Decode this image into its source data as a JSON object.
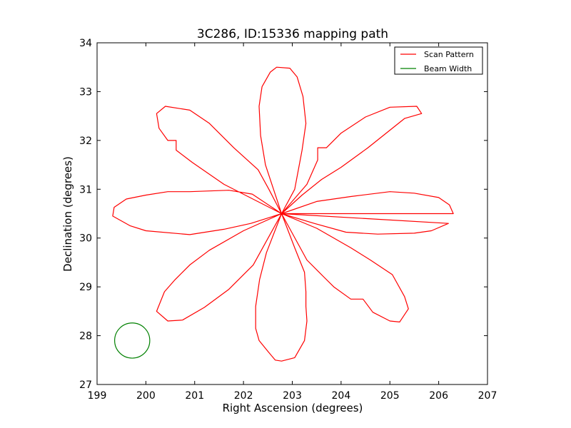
{
  "chart_data": {
    "type": "line",
    "title": "3C286, ID:15336 mapping path",
    "xlabel": "Right Ascension (degrees)",
    "ylabel": "Declination (degrees)",
    "xlim": [
      199,
      207
    ],
    "ylim": [
      27,
      34
    ],
    "xticks": [
      199,
      200,
      201,
      202,
      203,
      204,
      205,
      206,
      207
    ],
    "yticks": [
      27,
      28,
      29,
      30,
      31,
      32,
      33,
      34
    ],
    "grid": false,
    "legend_position": "top-right",
    "center": [
      202.78,
      30.5
    ],
    "series": [
      {
        "name": "Scan Pattern",
        "color": "#ff0000",
        "points": [
          [
            202.78,
            30.5
          ],
          [
            202.52,
            31.0
          ],
          [
            202.3,
            31.4
          ],
          [
            201.8,
            31.85
          ],
          [
            201.3,
            32.35
          ],
          [
            200.9,
            32.62
          ],
          [
            200.4,
            32.7
          ],
          [
            200.22,
            32.55
          ],
          [
            200.27,
            32.25
          ],
          [
            200.45,
            32.0
          ],
          [
            200.62,
            32.0
          ],
          [
            200.62,
            31.8
          ],
          [
            200.95,
            31.55
          ],
          [
            201.6,
            31.1
          ],
          [
            202.78,
            30.5
          ],
          [
            202.18,
            30.9
          ],
          [
            201.7,
            30.98
          ],
          [
            200.9,
            30.95
          ],
          [
            200.45,
            30.95
          ],
          [
            200.0,
            30.88
          ],
          [
            199.6,
            30.8
          ],
          [
            199.35,
            30.63
          ],
          [
            199.32,
            30.45
          ],
          [
            199.68,
            30.25
          ],
          [
            200.0,
            30.15
          ],
          [
            200.9,
            30.07
          ],
          [
            201.6,
            30.18
          ],
          [
            202.15,
            30.3
          ],
          [
            202.78,
            30.5
          ],
          [
            202.0,
            30.15
          ],
          [
            201.3,
            29.75
          ],
          [
            200.9,
            29.45
          ],
          [
            200.6,
            29.15
          ],
          [
            200.38,
            28.9
          ],
          [
            200.22,
            28.5
          ],
          [
            200.45,
            28.3
          ],
          [
            200.75,
            28.32
          ],
          [
            201.2,
            28.58
          ],
          [
            201.7,
            28.95
          ],
          [
            202.2,
            29.45
          ],
          [
            202.78,
            30.5
          ],
          [
            202.47,
            29.7
          ],
          [
            202.33,
            29.15
          ],
          [
            202.25,
            28.6
          ],
          [
            202.25,
            28.15
          ],
          [
            202.32,
            27.9
          ],
          [
            202.5,
            27.68
          ],
          [
            202.65,
            27.5
          ],
          [
            202.78,
            27.48
          ],
          [
            203.05,
            27.55
          ],
          [
            203.25,
            27.9
          ],
          [
            203.3,
            28.3
          ],
          [
            203.28,
            28.6
          ],
          [
            203.28,
            28.9
          ],
          [
            203.25,
            29.3
          ],
          [
            203.05,
            29.8
          ],
          [
            202.78,
            30.5
          ],
          [
            203.3,
            29.55
          ],
          [
            203.65,
            29.2
          ],
          [
            203.85,
            29.0
          ],
          [
            204.2,
            28.75
          ],
          [
            204.45,
            28.75
          ],
          [
            204.65,
            28.48
          ],
          [
            205.0,
            28.3
          ],
          [
            205.2,
            28.28
          ],
          [
            205.38,
            28.55
          ],
          [
            205.3,
            28.8
          ],
          [
            205.05,
            29.25
          ],
          [
            204.6,
            29.55
          ],
          [
            204.2,
            29.8
          ],
          [
            203.5,
            30.2
          ],
          [
            202.78,
            30.5
          ],
          [
            203.45,
            30.3
          ],
          [
            204.1,
            30.12
          ],
          [
            204.75,
            30.08
          ],
          [
            205.5,
            30.1
          ],
          [
            205.85,
            30.15
          ],
          [
            206.2,
            30.3
          ],
          [
            202.78,
            30.5
          ],
          [
            203.5,
            30.75
          ],
          [
            204.2,
            30.85
          ],
          [
            205.0,
            30.95
          ],
          [
            205.5,
            30.92
          ],
          [
            206.0,
            30.83
          ],
          [
            206.22,
            30.68
          ],
          [
            206.3,
            30.5
          ],
          [
            202.78,
            30.5
          ],
          [
            203.2,
            30.88
          ],
          [
            203.6,
            31.2
          ],
          [
            204.0,
            31.45
          ],
          [
            204.55,
            31.85
          ],
          [
            205.3,
            32.45
          ],
          [
            205.65,
            32.55
          ],
          [
            205.55,
            32.7
          ],
          [
            205.0,
            32.68
          ],
          [
            204.5,
            32.48
          ],
          [
            204.0,
            32.15
          ],
          [
            203.7,
            31.85
          ],
          [
            203.52,
            31.85
          ],
          [
            203.52,
            31.6
          ],
          [
            203.3,
            31.1
          ],
          [
            202.78,
            30.5
          ],
          [
            203.05,
            31.0
          ],
          [
            203.2,
            31.8
          ],
          [
            203.28,
            32.35
          ],
          [
            203.22,
            32.9
          ],
          [
            203.1,
            33.3
          ],
          [
            202.95,
            33.48
          ],
          [
            202.68,
            33.5
          ],
          [
            202.55,
            33.4
          ],
          [
            202.38,
            33.1
          ],
          [
            202.32,
            32.7
          ],
          [
            202.35,
            32.1
          ],
          [
            202.45,
            31.5
          ],
          [
            202.78,
            30.5
          ]
        ]
      },
      {
        "name": "Beam Width",
        "color": "#008000",
        "shape": "circle",
        "center": [
          199.72,
          27.9
        ],
        "radius": 0.36
      }
    ]
  }
}
